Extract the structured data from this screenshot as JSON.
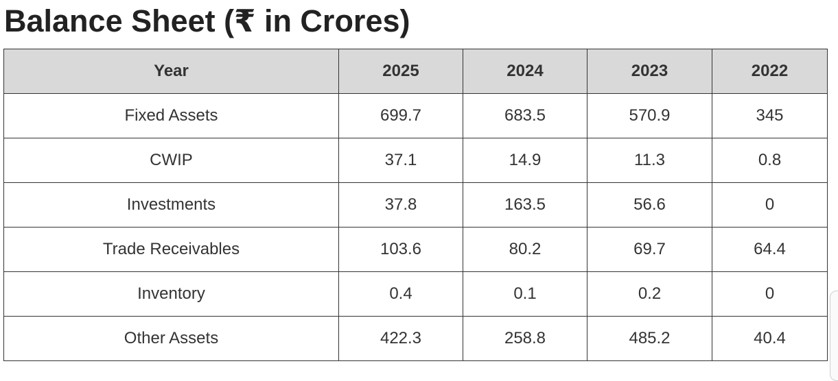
{
  "title": "Balance Sheet (₹ in Crores)",
  "table": {
    "headers": [
      "Year",
      "2025",
      "2024",
      "2023",
      "2022"
    ],
    "rows": [
      [
        "Fixed Assets",
        "699.7",
        "683.5",
        "570.9",
        "345"
      ],
      [
        "CWIP",
        "37.1",
        "14.9",
        "11.3",
        "0.8"
      ],
      [
        "Investments",
        "37.8",
        "163.5",
        "56.6",
        "0"
      ],
      [
        "Trade Receivables",
        "103.6",
        "80.2",
        "69.7",
        "64.4"
      ],
      [
        "Inventory",
        "0.4",
        "0.1",
        "0.2",
        "0"
      ],
      [
        "Other Assets",
        "422.3",
        "258.8",
        "485.2",
        "40.4"
      ]
    ]
  },
  "colors": {
    "header_bg": "#d9d9d9",
    "border": "#333333",
    "text": "#222222"
  }
}
